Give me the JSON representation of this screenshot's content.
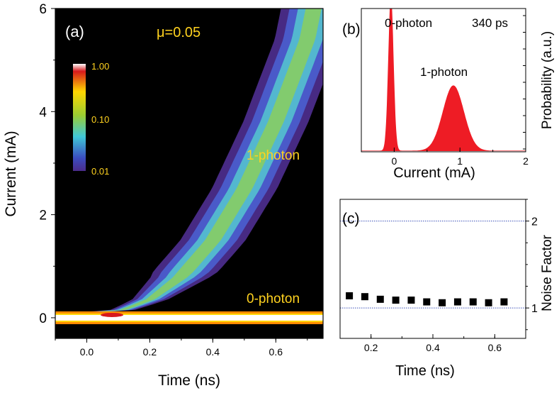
{
  "chart_data": [
    {
      "panel": "(a)",
      "type": "heatmap",
      "xlabel": "Time (ns)",
      "ylabel": "Current (mA)",
      "xlim": [
        -0.1,
        0.75
      ],
      "ylim": [
        -0.4,
        6
      ],
      "x_ticks": [
        "0.0",
        "0.2",
        "0.4",
        "0.6"
      ],
      "x_tick_values": [
        0,
        0.2,
        0.4,
        0.6
      ],
      "y_ticks": [
        "0",
        "2",
        "4",
        "6"
      ],
      "y_tick_values": [
        0,
        2,
        4,
        6
      ],
      "annotation_mu": "μ=0.05",
      "label_1photon": "1-photon",
      "label_0photon": "0-photon",
      "colorbar_ticks": [
        "1.00",
        "0.10",
        "0.01"
      ],
      "colorbar_scale": "log",
      "colorbar_colors": [
        "#ffffff",
        "#d7191c",
        "#ffd700",
        "#9acd32",
        "#40c8d8",
        "#3b4cc0",
        "#4b2c8a"
      ],
      "band_1photon": {
        "t0": 0.0,
        "center_curve": [
          [
            0.0,
            0.05
          ],
          [
            0.1,
            0.12
          ],
          [
            0.2,
            0.35
          ],
          [
            0.3,
            0.8
          ],
          [
            0.4,
            1.5
          ],
          [
            0.5,
            2.5
          ],
          [
            0.6,
            3.8
          ],
          [
            0.7,
            5.4
          ],
          [
            0.72,
            6.0
          ]
        ],
        "halfwidth_time_ns": 0.09
      },
      "band_0photon": {
        "current_mA": 0.0
      }
    },
    {
      "panel": "(b)",
      "type": "area",
      "xlabel": "Current (mA)",
      "ylabel": "Probability (a.u.)",
      "xlim": [
        -0.5,
        2
      ],
      "x_ticks": [
        "0",
        "1",
        "2"
      ],
      "x_tick_values": [
        0,
        1,
        2
      ],
      "label_time": "340 ps",
      "label_0photon": "0-photon",
      "label_1photon": "1-photon",
      "color": "#ee1c25",
      "peaks": [
        {
          "center": -0.05,
          "width": 0.04,
          "height": 10.0
        },
        {
          "center": 0.9,
          "width": 0.16,
          "height": 1.0
        }
      ]
    },
    {
      "panel": "(c)",
      "type": "scatter",
      "xlabel": "Time (ns)",
      "ylabel": "Noise Factor",
      "xlim": [
        0.1,
        0.7
      ],
      "ylim": [
        0.65,
        2.25
      ],
      "x_ticks": [
        "0.2",
        "0.4",
        "0.6"
      ],
      "x_tick_values": [
        0.2,
        0.4,
        0.6
      ],
      "y_ticks": [
        "1",
        "2"
      ],
      "y_tick_values": [
        1,
        2
      ],
      "reference_lines": [
        1,
        2
      ],
      "x": [
        0.13,
        0.18,
        0.23,
        0.28,
        0.33,
        0.38,
        0.43,
        0.48,
        0.53,
        0.58,
        0.63
      ],
      "y": [
        1.14,
        1.13,
        1.1,
        1.09,
        1.09,
        1.07,
        1.06,
        1.07,
        1.07,
        1.06,
        1.07
      ]
    }
  ]
}
